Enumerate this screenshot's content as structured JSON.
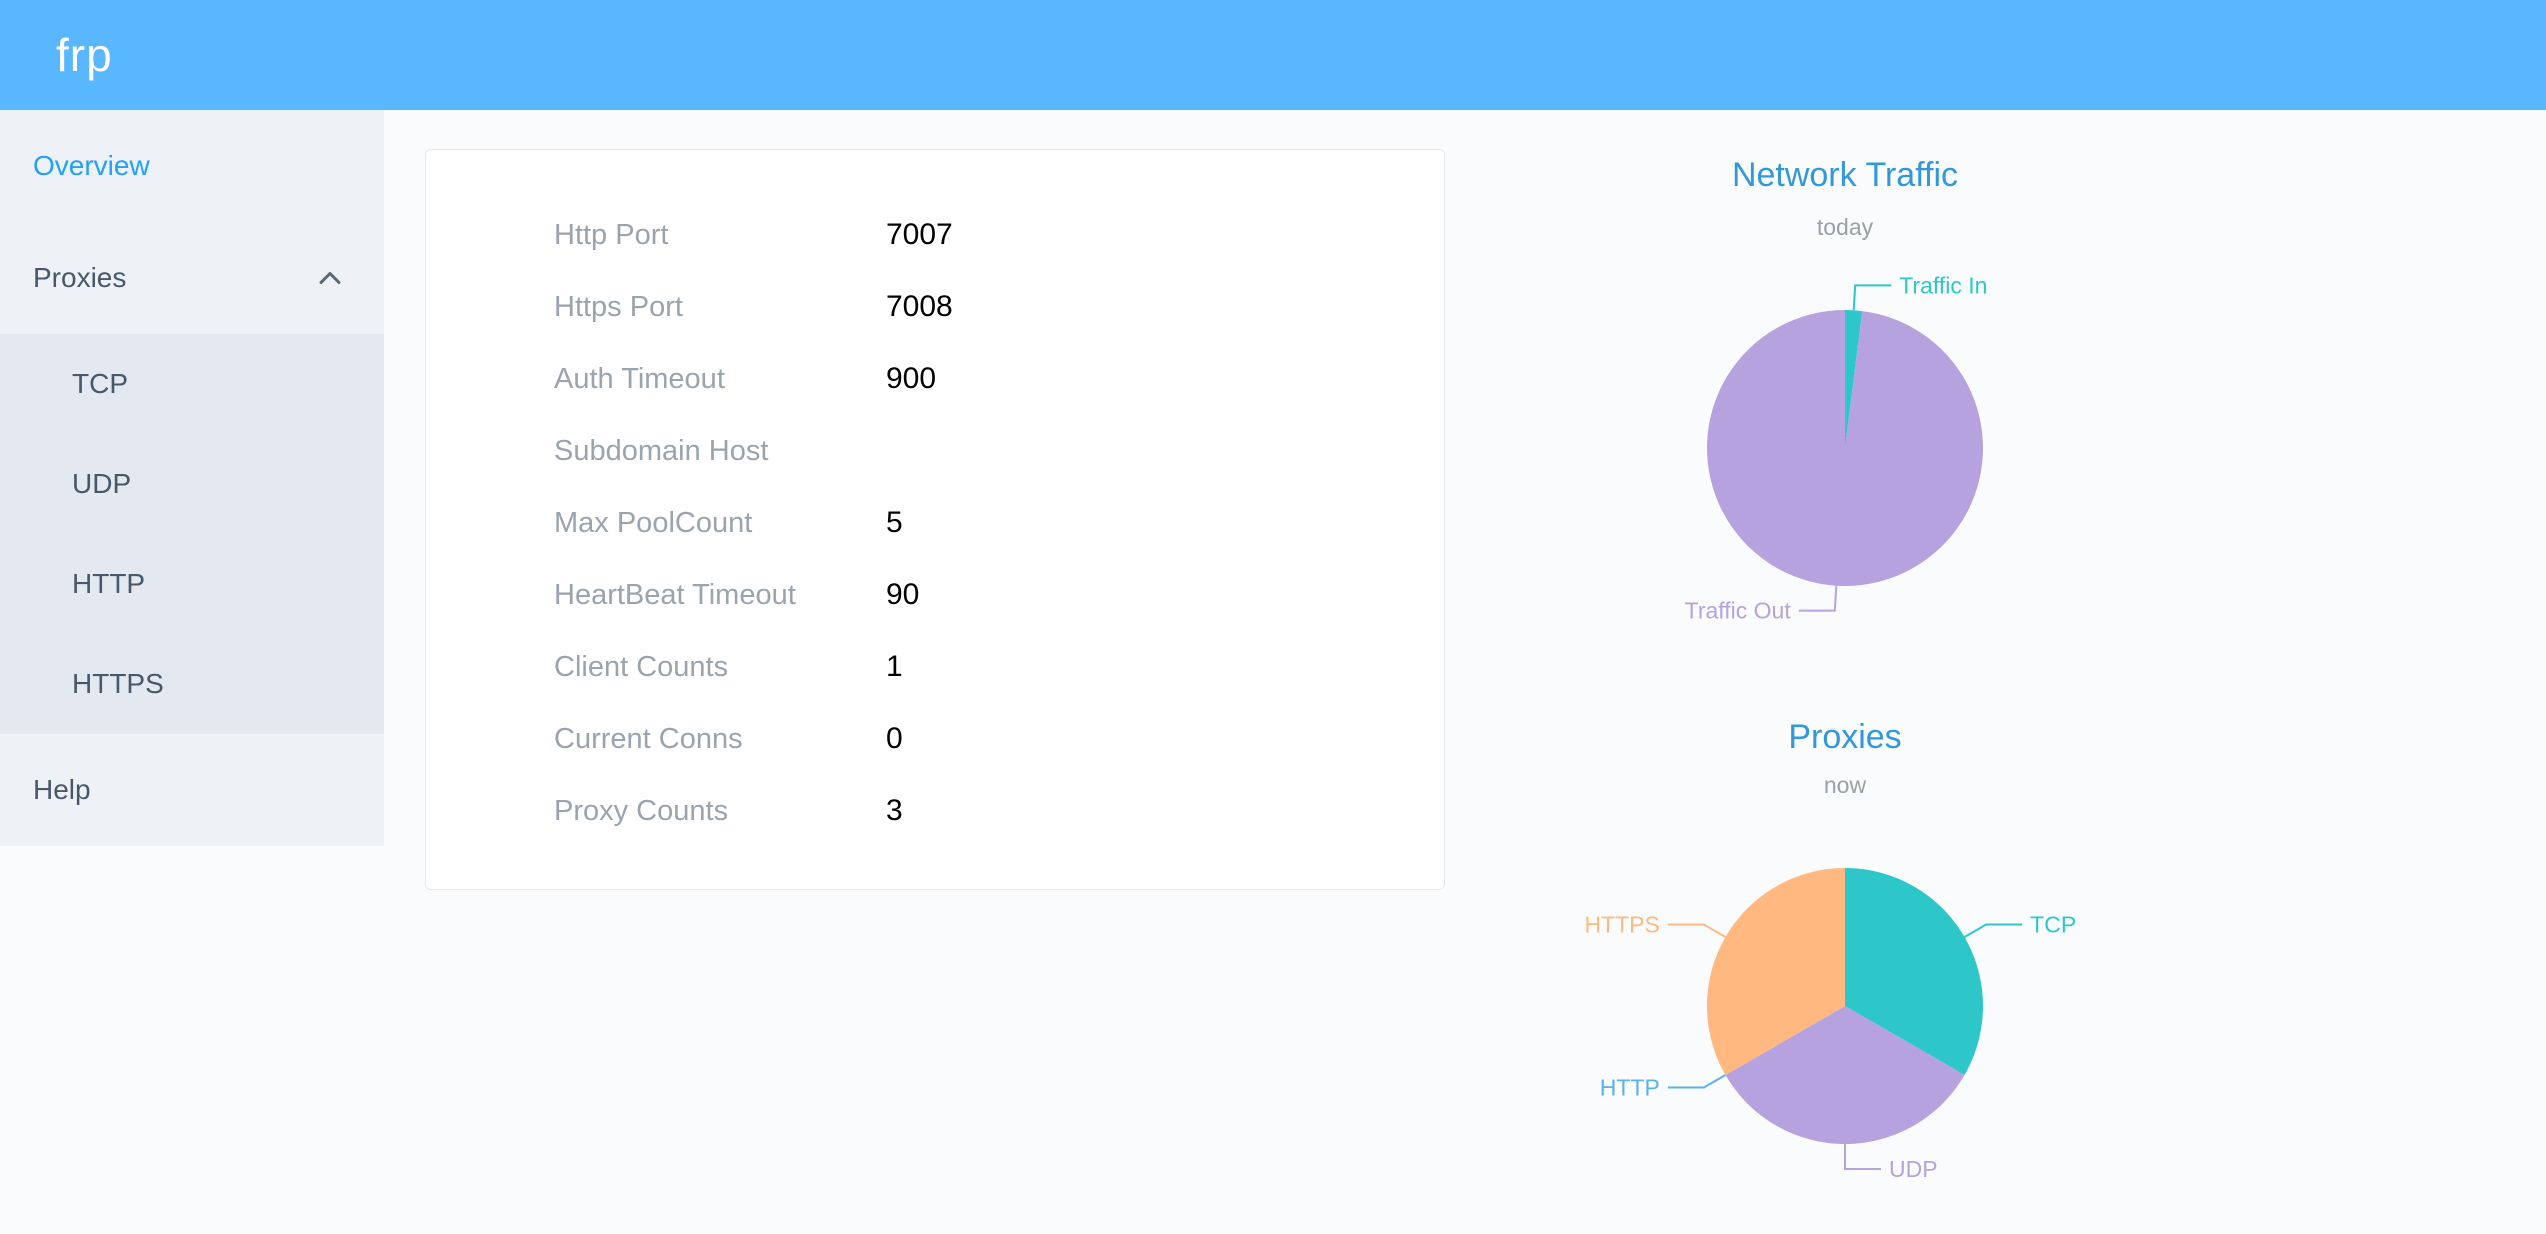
{
  "header": {
    "logo": "frp",
    "bg_color": "#58b7ff"
  },
  "theme": {
    "accent_color": "#20a0ff",
    "chart_title_color": "#3398db",
    "sidebar_text_color": "#48576a"
  },
  "sidebar": {
    "items": [
      {
        "label": "Overview",
        "active": true
      },
      {
        "label": "Proxies",
        "expanded": true,
        "children": [
          "TCP",
          "UDP",
          "HTTP",
          "HTTPS"
        ]
      },
      {
        "label": "Help"
      }
    ]
  },
  "overview": {
    "rows": [
      {
        "label": "Http Port",
        "value": "7007"
      },
      {
        "label": "Https Port",
        "value": "7008"
      },
      {
        "label": "Auth Timeout",
        "value": "900"
      },
      {
        "label": "Subdomain Host",
        "value": ""
      },
      {
        "label": "Max PoolCount",
        "value": "5"
      },
      {
        "label": "HeartBeat Timeout",
        "value": "90"
      },
      {
        "label": "Client Counts",
        "value": "1"
      },
      {
        "label": "Current Conns",
        "value": "0"
      },
      {
        "label": "Proxy Counts",
        "value": "3"
      }
    ]
  },
  "chart_data": [
    {
      "type": "pie",
      "title": "Network Traffic",
      "subtitle": "today",
      "legend_position": "outside-labels",
      "series": [
        {
          "name": "Traffic In",
          "value": 2,
          "color": "#2ec7c9"
        },
        {
          "name": "Traffic Out",
          "value": 98,
          "color": "#b6a2de"
        }
      ]
    },
    {
      "type": "pie",
      "title": "Proxies",
      "subtitle": "now",
      "legend_position": "outside-labels",
      "series": [
        {
          "name": "TCP",
          "value": 1,
          "color": "#2ec7c9"
        },
        {
          "name": "UDP",
          "value": 1,
          "color": "#b6a2de"
        },
        {
          "name": "HTTP",
          "value": 0,
          "color": "#5ab1ef"
        },
        {
          "name": "HTTPS",
          "value": 1,
          "color": "#ffb980"
        }
      ]
    }
  ]
}
